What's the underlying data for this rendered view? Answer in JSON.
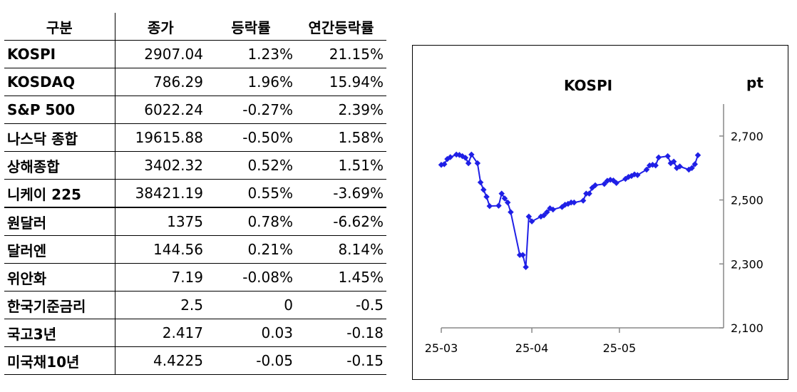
{
  "table": {
    "headers": [
      "구분",
      "종가",
      "등락률",
      "연간등락률"
    ],
    "rows": [
      {
        "name": "KOSPI",
        "close": "2907.04",
        "change": "1.23%",
        "ytd": "21.15%"
      },
      {
        "name": "KOSDAQ",
        "close": "786.29",
        "change": "1.96%",
        "ytd": "15.94%"
      },
      {
        "name": "S&P 500",
        "close": "6022.24",
        "change": "-0.27%",
        "ytd": "2.39%"
      },
      {
        "name": "나스닥 종합",
        "close": "19615.88",
        "change": "-0.50%",
        "ytd": "1.58%"
      },
      {
        "name": "상해종합",
        "close": "3402.32",
        "change": "0.52%",
        "ytd": "1.51%"
      },
      {
        "name": "니케이 225",
        "close": "38421.19",
        "change": "0.55%",
        "ytd": "-3.69%"
      },
      {
        "name": "원달러",
        "close": "1375",
        "change": "0.78%",
        "ytd": "-6.62%"
      },
      {
        "name": "달러엔",
        "close": "144.56",
        "change": "0.21%",
        "ytd": "8.14%"
      },
      {
        "name": "위안화",
        "close": "7.19",
        "change": "-0.08%",
        "ytd": "1.45%"
      },
      {
        "name": "한국기준금리",
        "close": "2.5",
        "change": "0",
        "ytd": "-0.5"
      },
      {
        "name": "국고3년",
        "close": "2.417",
        "change": "0.03",
        "ytd": "-0.18"
      },
      {
        "name": "미국채10년",
        "close": "4.4225",
        "change": "-0.05",
        "ytd": "-0.15"
      }
    ]
  },
  "chart_data": {
    "type": "line",
    "title": "KOSPI",
    "ylabel": "pt",
    "ylim": [
      2100,
      2800
    ],
    "yticks": [
      2100,
      2300,
      2500,
      2700
    ],
    "ytick_labels": [
      "2,100",
      "2,300",
      "2,500",
      "2,700"
    ],
    "xticks": [
      0,
      30,
      59
    ],
    "xtick_labels": [
      "25-03",
      "25-04",
      "25-05"
    ],
    "xlim": [
      0,
      85
    ],
    "grid": false,
    "legend": "none",
    "color": "#1f1fe6",
    "series": [
      {
        "x": [
          0,
          1,
          2,
          3,
          5,
          6,
          7,
          8,
          9,
          10,
          12,
          13,
          14,
          15,
          16,
          19,
          20,
          21,
          22,
          23,
          26,
          27,
          28,
          29,
          30,
          33,
          34,
          35,
          36,
          37,
          40,
          41,
          42,
          43,
          44,
          47,
          48,
          49,
          50,
          51,
          54,
          55,
          56,
          57,
          58,
          61,
          62,
          63,
          64,
          65,
          68,
          69,
          70,
          71,
          72,
          75,
          76,
          77,
          78,
          79,
          82,
          83,
          84,
          85
        ],
        "y": [
          2610,
          2612,
          2628,
          2634,
          2642,
          2641,
          2637,
          2632,
          2615,
          2642,
          2615,
          2555,
          2532,
          2510,
          2481,
          2482,
          2520,
          2505,
          2492,
          2462,
          2328,
          2328,
          2290,
          2448,
          2433,
          2448,
          2452,
          2462,
          2474,
          2470,
          2478,
          2485,
          2488,
          2492,
          2492,
          2498,
          2520,
          2520,
          2538,
          2546,
          2550,
          2560,
          2563,
          2561,
          2553,
          2566,
          2572,
          2575,
          2580,
          2578,
          2595,
          2608,
          2610,
          2608,
          2633,
          2637,
          2615,
          2620,
          2600,
          2605,
          2595,
          2600,
          2612,
          2640
        ]
      }
    ]
  }
}
